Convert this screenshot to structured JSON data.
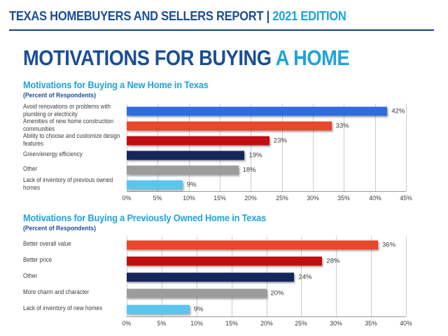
{
  "header": {
    "report_title": "TEXAS HOMEBUYERS AND SELLERS REPORT | ",
    "edition": "2021 EDITION"
  },
  "page_title": {
    "main": "MOTIVATIONS FOR BUYING ",
    "accent": "A HOME"
  },
  "colors": {
    "navy": "#1A4E96",
    "cyan": "#1FA3DB",
    "divider": "#17407E",
    "gridline": "#CCCCCC",
    "axis_line": "#9A9A9A",
    "label_text": "#3D3D3D"
  },
  "chart_data": [
    {
      "type": "bar",
      "orientation": "horizontal",
      "title": "Motivations for Buying a New Home in Texas",
      "subtitle": "(Percent of Respondents)",
      "categories": [
        "Avoid renovations or problems with\nplumbing or electricity",
        "Amenities of new home construction\ncommunities",
        "Ability to choose and customize design\nfeatures",
        "Green/energy efficiency",
        "Other",
        "Lack of inventory of previous owned\nhomes"
      ],
      "values": [
        42,
        33,
        23,
        19,
        18,
        9
      ],
      "value_labels": [
        "42%",
        "33%",
        "23%",
        "19%",
        "18%",
        "9%"
      ],
      "bar_colors": [
        "#2E6CE0",
        "#E8472B",
        "#C10E10",
        "#14265B",
        "#9C9C9C",
        "#5BC5EC"
      ],
      "xlabel": "",
      "ylabel": "",
      "xlim": [
        0,
        45
      ],
      "tick_step": 5,
      "tick_labels": [
        "0%",
        "5%",
        "10%",
        "15%",
        "20%",
        "25%",
        "30%",
        "35%",
        "40%",
        "45%"
      ],
      "grid": true,
      "legend": false
    },
    {
      "type": "bar",
      "orientation": "horizontal",
      "title": "Motivations for Buying a Previously Owned Home in Texas",
      "subtitle": "(Percent of Respondents)",
      "categories": [
        "Better overall value",
        "Better price",
        "Other",
        "More charm and character",
        "Lack of inventory of new homes"
      ],
      "values": [
        36,
        28,
        24,
        20,
        9
      ],
      "value_labels": [
        "36%",
        "28%",
        "24%",
        "20%",
        "9%"
      ],
      "bar_colors": [
        "#E8472B",
        "#C10E10",
        "#14265B",
        "#9C9C9C",
        "#5BC5EC"
      ],
      "xlabel": "",
      "ylabel": "",
      "xlim": [
        0,
        40
      ],
      "tick_step": 5,
      "tick_labels": [
        "0%",
        "5%",
        "10%",
        "15%",
        "20%",
        "25%",
        "30%",
        "35%",
        "40%"
      ],
      "grid": true,
      "legend": false
    }
  ]
}
